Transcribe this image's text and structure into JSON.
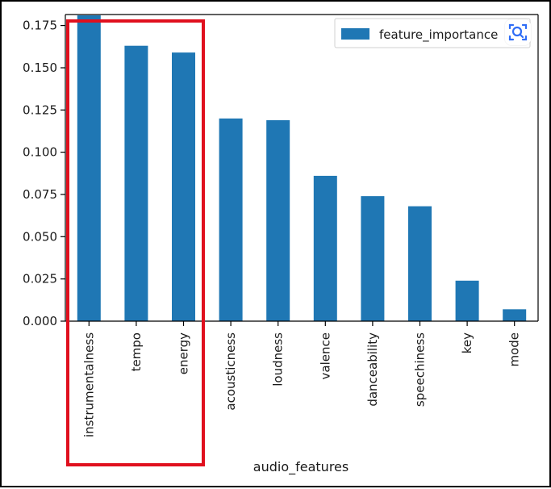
{
  "chart_data": {
    "type": "bar",
    "categories": [
      "instrumentalness",
      "tempo",
      "energy",
      "acousticness",
      "loudness",
      "valence",
      "danceability",
      "speechiness",
      "key",
      "mode"
    ],
    "series": [
      {
        "name": "feature_importance",
        "values": [
          0.181,
          0.163,
          0.159,
          0.12,
          0.119,
          0.086,
          0.074,
          0.068,
          0.024,
          0.007
        ]
      }
    ],
    "xlabel": "audio_features",
    "ylabel": "",
    "ylim": [
      0,
      0.1815
    ],
    "yticks": [
      0.0,
      0.025,
      0.05,
      0.075,
      0.1,
      0.125,
      0.15,
      0.175
    ],
    "ytick_labels": [
      "0.000",
      "0.025",
      "0.050",
      "0.075",
      "0.100",
      "0.125",
      "0.150",
      "0.175"
    ],
    "legend": "top-right",
    "grid": false,
    "highlight_categories": [
      "instrumentalness",
      "tempo",
      "energy"
    ]
  },
  "colors": {
    "bar": "#1f77b4",
    "axis": "#000000",
    "highlight_box": "#e0101e",
    "scan_icon": "#2f6df6"
  },
  "icons": {
    "scan": "scan-icon"
  }
}
